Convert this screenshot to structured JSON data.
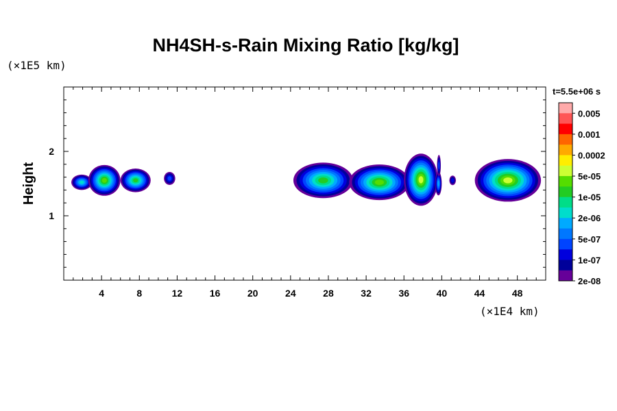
{
  "chart_data": {
    "type": "heatmap",
    "title": "NH4SH-s-Rain Mixing Ratio [kg/kg]",
    "ylabel": "Height",
    "xlabel": "",
    "x_unit": "(×1E4 km)",
    "y_unit": "(×1E5 km)",
    "time_label": "t=5.5e+06 s",
    "xlim": [
      0,
      51
    ],
    "ylim": [
      0,
      3
    ],
    "x_ticks": [
      "4",
      "8",
      "12",
      "16",
      "20",
      "24",
      "28",
      "32",
      "36",
      "40",
      "44",
      "48"
    ],
    "x_tick_values": [
      4,
      8,
      12,
      16,
      20,
      24,
      28,
      32,
      36,
      40,
      44,
      48
    ],
    "y_ticks": [
      "1",
      "2"
    ],
    "y_tick_values": [
      1,
      2
    ],
    "colorbar": {
      "labels": [
        "0.005",
        "0.001",
        "0.0002",
        "5e-05",
        "1e-05",
        "2e-06",
        "5e-07",
        "1e-07",
        "2e-08"
      ],
      "colors": [
        "#ffaaaa",
        "#ff5555",
        "#ff0000",
        "#ff6600",
        "#ffaa00",
        "#ffee00",
        "#ccff33",
        "#55dd00",
        "#22cc22",
        "#00dd88",
        "#00ddcc",
        "#00aaff",
        "#0077ff",
        "#0044ff",
        "#0000dd",
        "#00009a",
        "#660099"
      ]
    },
    "blobs": [
      {
        "x": 0.8,
        "y": 1.52,
        "w": 2.2,
        "h": 0.13,
        "peak": "#00ddcc"
      },
      {
        "x": 2.6,
        "y": 1.55,
        "w": 3.4,
        "h": 0.26,
        "peak": "#55dd00"
      },
      {
        "x": 6.0,
        "y": 1.55,
        "w": 3.2,
        "h": 0.2,
        "peak": "#22cc22"
      },
      {
        "x": 10.6,
        "y": 1.58,
        "w": 1.2,
        "h": 0.11,
        "peak": "#0044ff"
      },
      {
        "x": 24.3,
        "y": 1.55,
        "w": 6.3,
        "h": 0.3,
        "peak": "#22cc22"
      },
      {
        "x": 30.2,
        "y": 1.52,
        "w": 6.4,
        "h": 0.3,
        "peak": "#55dd00"
      },
      {
        "x": 36.0,
        "y": 1.56,
        "w": 3.6,
        "h": 0.44,
        "peak": "#ccff33"
      },
      {
        "x": 39.3,
        "y": 1.5,
        "w": 0.7,
        "h": 0.2,
        "peak": "#00aaff"
      },
      {
        "x": 39.5,
        "y": 1.78,
        "w": 0.4,
        "h": 0.18,
        "peak": "#0044ff"
      },
      {
        "x": 40.8,
        "y": 1.55,
        "w": 0.7,
        "h": 0.08,
        "peak": "#0000dd"
      },
      {
        "x": 43.5,
        "y": 1.55,
        "w": 7.0,
        "h": 0.36,
        "peak": "#ccff33"
      }
    ]
  }
}
